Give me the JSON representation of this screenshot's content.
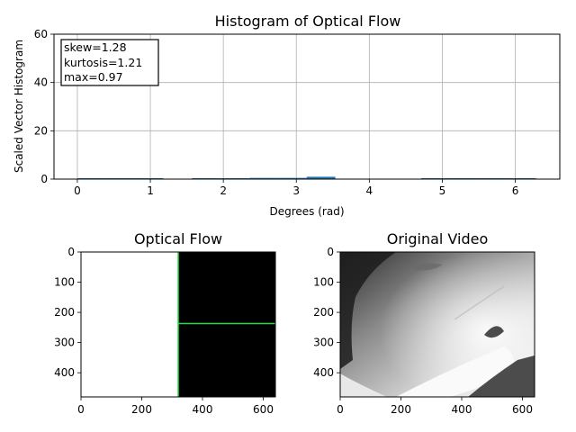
{
  "colors": {
    "bar": "#1f77b4",
    "grid": "#b0b0b0",
    "flow_line": "#22dd44",
    "flow_left": "#ffffff",
    "flow_right": "#000000"
  },
  "chart_data": [
    {
      "type": "bar",
      "title": "Histogram of Optical Flow",
      "xlabel": "Degrees (rad)",
      "ylabel": "Scaled Vector Histogram",
      "xlim": [
        -0.32,
        6.61
      ],
      "ylim": [
        0,
        60
      ],
      "xticks": [
        0,
        1,
        2,
        3,
        4,
        5,
        6
      ],
      "yticks": [
        0,
        20,
        40,
        60
      ],
      "grid": true,
      "bin_width": 0.3927,
      "bins": [
        {
          "x0": 0.0,
          "value": 0.3
        },
        {
          "x0": 0.3927,
          "value": 0.3
        },
        {
          "x0": 0.7854,
          "value": 0.3
        },
        {
          "x0": 1.5708,
          "value": 0.3
        },
        {
          "x0": 1.9635,
          "value": 0.3
        },
        {
          "x0": 2.3562,
          "value": 0.5
        },
        {
          "x0": 2.7489,
          "value": 0.5
        },
        {
          "x0": 3.1416,
          "value": 0.97
        },
        {
          "x0": 4.7124,
          "value": 0.3
        },
        {
          "x0": 5.1051,
          "value": 0.3
        },
        {
          "x0": 5.4978,
          "value": 0.3
        },
        {
          "x0": 5.8905,
          "value": 0.3
        }
      ],
      "annotation": [
        "skew=1.28",
        "kurtosis=1.21",
        "max=0.97"
      ],
      "annotation_placement": "top-left"
    },
    {
      "type": "image",
      "title": "Optical Flow",
      "xlim": [
        0,
        640
      ],
      "ylim": [
        480,
        0
      ],
      "xticks": [
        0,
        200,
        400,
        600
      ],
      "yticks": [
        0,
        100,
        200,
        300,
        400
      ],
      "split_x": 320,
      "line_y": 237
    },
    {
      "type": "image",
      "title": "Original Video",
      "xlim": [
        0,
        640
      ],
      "ylim": [
        480,
        0
      ],
      "xticks": [
        0,
        200,
        400,
        600
      ],
      "yticks": [
        0,
        100,
        200,
        300,
        400
      ]
    }
  ]
}
